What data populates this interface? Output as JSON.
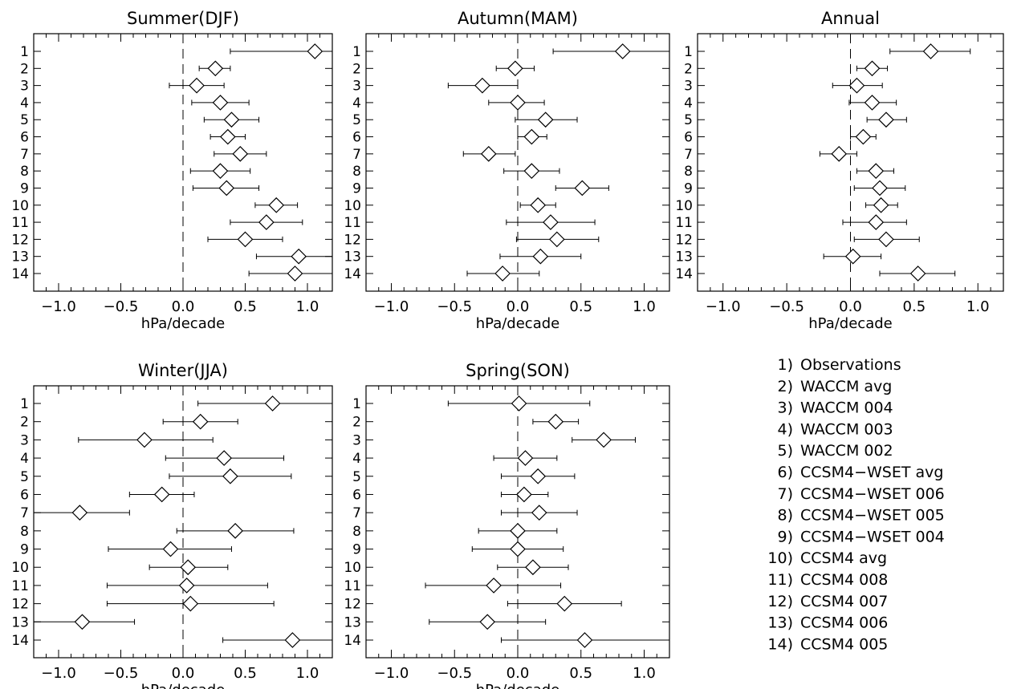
{
  "chart_data": [
    {
      "type": "scatter",
      "title": "Summer(DJF)",
      "xlabel": "hPa/decade",
      "xlim": [
        -1.2,
        1.2
      ],
      "xticks": [
        "-1.0",
        "-0.5",
        "0.0",
        "0.5",
        "1.0"
      ],
      "yticks": [
        "1",
        "2",
        "3",
        "4",
        "5",
        "6",
        "7",
        "8",
        "9",
        "10",
        "11",
        "12",
        "13",
        "14"
      ],
      "points": [
        {
          "y": 1,
          "x": 1.06,
          "lo": 0.38,
          "hi": 1.2
        },
        {
          "y": 2,
          "x": 0.26,
          "lo": 0.13,
          "hi": 0.38
        },
        {
          "y": 3,
          "x": 0.11,
          "lo": -0.11,
          "hi": 0.33
        },
        {
          "y": 4,
          "x": 0.3,
          "lo": 0.07,
          "hi": 0.53
        },
        {
          "y": 5,
          "x": 0.39,
          "lo": 0.17,
          "hi": 0.61
        },
        {
          "y": 6,
          "x": 0.36,
          "lo": 0.22,
          "hi": 0.5
        },
        {
          "y": 7,
          "x": 0.46,
          "lo": 0.25,
          "hi": 0.67
        },
        {
          "y": 8,
          "x": 0.3,
          "lo": 0.06,
          "hi": 0.54
        },
        {
          "y": 9,
          "x": 0.35,
          "lo": 0.08,
          "hi": 0.61
        },
        {
          "y": 10,
          "x": 0.75,
          "lo": 0.58,
          "hi": 0.92
        },
        {
          "y": 11,
          "x": 0.67,
          "lo": 0.38,
          "hi": 0.96
        },
        {
          "y": 12,
          "x": 0.5,
          "lo": 0.2,
          "hi": 0.8
        },
        {
          "y": 13,
          "x": 0.93,
          "lo": 0.59,
          "hi": 1.2
        },
        {
          "y": 14,
          "x": 0.9,
          "lo": 0.53,
          "hi": 1.2
        }
      ]
    },
    {
      "type": "scatter",
      "title": "Autumn(MAM)",
      "xlabel": "hPa/decade",
      "xlim": [
        -1.2,
        1.2
      ],
      "xticks": [
        "-1.0",
        "-0.5",
        "0.0",
        "0.5",
        "1.0"
      ],
      "yticks": [
        "1",
        "2",
        "3",
        "4",
        "5",
        "6",
        "7",
        "8",
        "9",
        "10",
        "11",
        "12",
        "13",
        "14"
      ],
      "points": [
        {
          "y": 1,
          "x": 0.83,
          "lo": 0.28,
          "hi": 1.2
        },
        {
          "y": 2,
          "x": -0.02,
          "lo": -0.17,
          "hi": 0.13
        },
        {
          "y": 3,
          "x": -0.28,
          "lo": -0.55,
          "hi": 0.0
        },
        {
          "y": 4,
          "x": 0.0,
          "lo": -0.23,
          "hi": 0.21
        },
        {
          "y": 5,
          "x": 0.22,
          "lo": -0.02,
          "hi": 0.47
        },
        {
          "y": 6,
          "x": 0.11,
          "lo": 0.0,
          "hi": 0.23
        },
        {
          "y": 7,
          "x": -0.23,
          "lo": -0.43,
          "hi": -0.02
        },
        {
          "y": 8,
          "x": 0.11,
          "lo": -0.11,
          "hi": 0.33
        },
        {
          "y": 9,
          "x": 0.51,
          "lo": 0.3,
          "hi": 0.72
        },
        {
          "y": 10,
          "x": 0.16,
          "lo": 0.02,
          "hi": 0.3
        },
        {
          "y": 11,
          "x": 0.26,
          "lo": -0.09,
          "hi": 0.61
        },
        {
          "y": 12,
          "x": 0.31,
          "lo": -0.01,
          "hi": 0.64
        },
        {
          "y": 13,
          "x": 0.18,
          "lo": -0.14,
          "hi": 0.5
        },
        {
          "y": 14,
          "x": -0.12,
          "lo": -0.4,
          "hi": 0.17
        }
      ]
    },
    {
      "type": "scatter",
      "title": "Annual",
      "xlabel": "hPa/decade",
      "xlim": [
        -1.2,
        1.2
      ],
      "xticks": [
        "-1.0",
        "-0.5",
        "0.0",
        "0.5",
        "1.0"
      ],
      "yticks": [
        "1",
        "2",
        "3",
        "4",
        "5",
        "6",
        "7",
        "8",
        "9",
        "10",
        "11",
        "12",
        "13",
        "14"
      ],
      "points": [
        {
          "y": 1,
          "x": 0.63,
          "lo": 0.31,
          "hi": 0.94
        },
        {
          "y": 2,
          "x": 0.17,
          "lo": 0.05,
          "hi": 0.29
        },
        {
          "y": 3,
          "x": 0.05,
          "lo": -0.14,
          "hi": 0.25
        },
        {
          "y": 4,
          "x": 0.17,
          "lo": -0.01,
          "hi": 0.36
        },
        {
          "y": 5,
          "x": 0.28,
          "lo": 0.13,
          "hi": 0.44
        },
        {
          "y": 6,
          "x": 0.1,
          "lo": 0.0,
          "hi": 0.2
        },
        {
          "y": 7,
          "x": -0.09,
          "lo": -0.24,
          "hi": 0.05
        },
        {
          "y": 8,
          "x": 0.2,
          "lo": 0.05,
          "hi": 0.34
        },
        {
          "y": 9,
          "x": 0.23,
          "lo": 0.03,
          "hi": 0.43
        },
        {
          "y": 10,
          "x": 0.24,
          "lo": 0.12,
          "hi": 0.37
        },
        {
          "y": 11,
          "x": 0.2,
          "lo": -0.06,
          "hi": 0.44
        },
        {
          "y": 12,
          "x": 0.28,
          "lo": 0.03,
          "hi": 0.54
        },
        {
          "y": 13,
          "x": 0.02,
          "lo": -0.21,
          "hi": 0.24
        },
        {
          "y": 14,
          "x": 0.53,
          "lo": 0.23,
          "hi": 0.82
        }
      ]
    },
    {
      "type": "scatter",
      "title": "Winter(JJA)",
      "xlabel": "hPa/decade",
      "xlim": [
        -1.2,
        1.2
      ],
      "xticks": [
        "-1.0",
        "-0.5",
        "0.0",
        "0.5",
        "1.0"
      ],
      "yticks": [
        "1",
        "2",
        "3",
        "4",
        "5",
        "6",
        "7",
        "8",
        "9",
        "10",
        "11",
        "12",
        "13",
        "14"
      ],
      "points": [
        {
          "y": 1,
          "x": 0.72,
          "lo": 0.12,
          "hi": 1.2
        },
        {
          "y": 2,
          "x": 0.14,
          "lo": -0.16,
          "hi": 0.44
        },
        {
          "y": 3,
          "x": -0.31,
          "lo": -0.84,
          "hi": 0.24
        },
        {
          "y": 4,
          "x": 0.33,
          "lo": -0.14,
          "hi": 0.81
        },
        {
          "y": 5,
          "x": 0.38,
          "lo": -0.11,
          "hi": 0.87
        },
        {
          "y": 6,
          "x": -0.17,
          "lo": -0.43,
          "hi": 0.09
        },
        {
          "y": 7,
          "x": -0.83,
          "lo": -1.2,
          "hi": -0.43
        },
        {
          "y": 8,
          "x": 0.42,
          "lo": -0.05,
          "hi": 0.89
        },
        {
          "y": 9,
          "x": -0.1,
          "lo": -0.6,
          "hi": 0.39
        },
        {
          "y": 10,
          "x": 0.04,
          "lo": -0.27,
          "hi": 0.36
        },
        {
          "y": 11,
          "x": 0.03,
          "lo": -0.61,
          "hi": 0.68
        },
        {
          "y": 12,
          "x": 0.06,
          "lo": -0.61,
          "hi": 0.73
        },
        {
          "y": 13,
          "x": -0.81,
          "lo": -1.2,
          "hi": -0.39
        },
        {
          "y": 14,
          "x": 0.88,
          "lo": 0.32,
          "hi": 1.2
        }
      ]
    },
    {
      "type": "scatter",
      "title": "Spring(SON)",
      "xlabel": "hPa/decade",
      "xlim": [
        -1.2,
        1.2
      ],
      "xticks": [
        "-1.0",
        "-0.5",
        "0.0",
        "0.5",
        "1.0"
      ],
      "yticks": [
        "1",
        "2",
        "3",
        "4",
        "5",
        "6",
        "7",
        "8",
        "9",
        "10",
        "11",
        "12",
        "13",
        "14"
      ],
      "points": [
        {
          "y": 1,
          "x": 0.01,
          "lo": -0.55,
          "hi": 0.57
        },
        {
          "y": 2,
          "x": 0.3,
          "lo": 0.12,
          "hi": 0.48
        },
        {
          "y": 3,
          "x": 0.68,
          "lo": 0.43,
          "hi": 0.93
        },
        {
          "y": 4,
          "x": 0.06,
          "lo": -0.19,
          "hi": 0.31
        },
        {
          "y": 5,
          "x": 0.16,
          "lo": -0.13,
          "hi": 0.45
        },
        {
          "y": 6,
          "x": 0.05,
          "lo": -0.13,
          "hi": 0.24
        },
        {
          "y": 7,
          "x": 0.17,
          "lo": -0.13,
          "hi": 0.47
        },
        {
          "y": 8,
          "x": 0.0,
          "lo": -0.31,
          "hi": 0.31
        },
        {
          "y": 9,
          "x": 0.0,
          "lo": -0.36,
          "hi": 0.36
        },
        {
          "y": 10,
          "x": 0.12,
          "lo": -0.16,
          "hi": 0.4
        },
        {
          "y": 11,
          "x": -0.19,
          "lo": -0.73,
          "hi": 0.34
        },
        {
          "y": 12,
          "x": 0.37,
          "lo": -0.08,
          "hi": 0.82
        },
        {
          "y": 13,
          "x": -0.24,
          "lo": -0.7,
          "hi": 0.22
        },
        {
          "y": 14,
          "x": 0.53,
          "lo": -0.13,
          "hi": 1.2
        }
      ]
    }
  ],
  "legend": [
    "1) Observations",
    "2) WACCM avg",
    "3) WACCM 004",
    "4) WACCM 003",
    "5) WACCM 002",
    "6) CCSM4-WSET avg",
    "7) CCSM4-WSET 006",
    "8) CCSM4-WSET 005",
    "9) CCSM4-WSET 004",
    "10) CCSM4 avg",
    "11) CCSM4 008",
    "12) CCSM4 007",
    "13) CCSM4 006",
    "14) CCSM4 005"
  ]
}
